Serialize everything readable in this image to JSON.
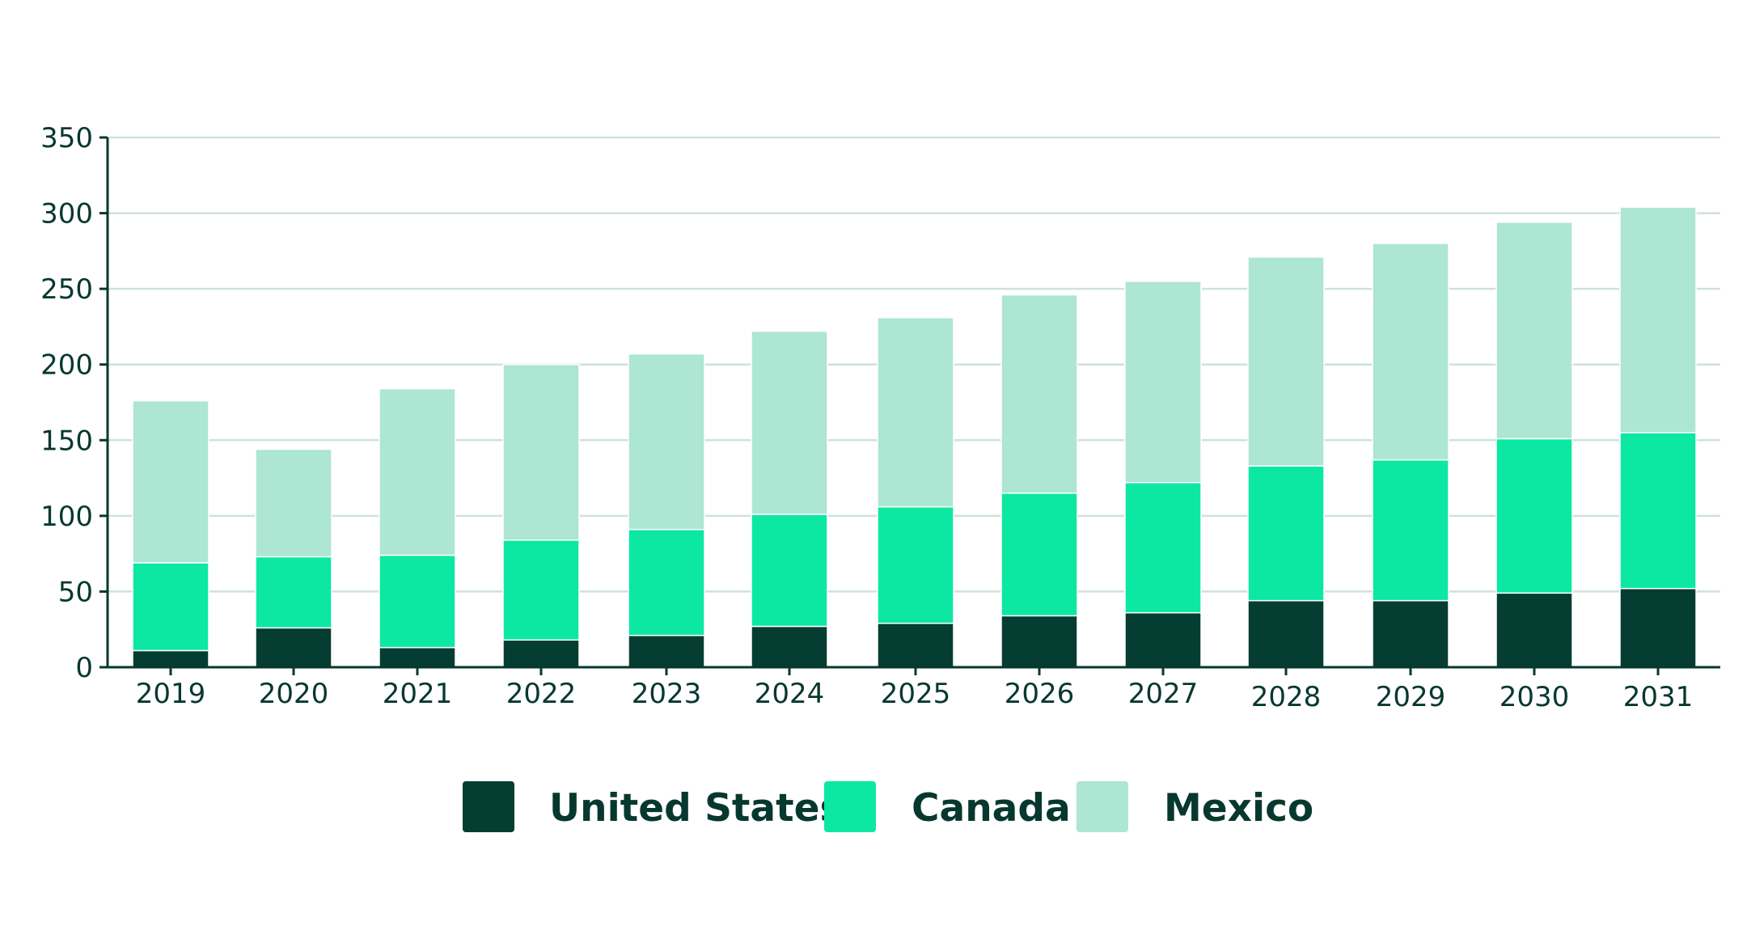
{
  "colors": {
    "united_states": "#053d33",
    "canada": "#0ce8a2",
    "mexico": "#ade6d3",
    "axis": "#07382f",
    "grid": "#cfe2da"
  },
  "chart_data": {
    "type": "bar",
    "stacked": true,
    "title": "",
    "xlabel": "",
    "ylabel": "",
    "ylim": [
      0,
      350
    ],
    "y_ticks": [
      0,
      50,
      100,
      150,
      200,
      250,
      300,
      350
    ],
    "y_tick_labels": [
      "0",
      "50",
      "100",
      "150",
      "200",
      "250",
      "300",
      "350"
    ],
    "grid": true,
    "legend_position": "bottom-center",
    "categories": [
      "2019",
      "2020",
      "2021",
      "2022",
      "2023",
      "2024",
      "2025",
      "2026",
      "2027",
      "2028",
      "2029",
      "2030",
      "2031"
    ],
    "series": [
      {
        "name": "United States",
        "color": "#053d33",
        "values": [
          11,
          26,
          13,
          18,
          21,
          27,
          29,
          34,
          36,
          44,
          44,
          49,
          52
        ]
      },
      {
        "name": "Canada",
        "color": "#0ce8a2",
        "values": [
          58,
          47,
          61,
          66,
          70,
          74,
          77,
          81,
          86,
          89,
          93,
          102,
          103
        ]
      },
      {
        "name": "Mexico",
        "color": "#ade6d3",
        "values": [
          107,
          71,
          110,
          116,
          116,
          121,
          125,
          131,
          133,
          138,
          143,
          143,
          149
        ]
      }
    ]
  }
}
